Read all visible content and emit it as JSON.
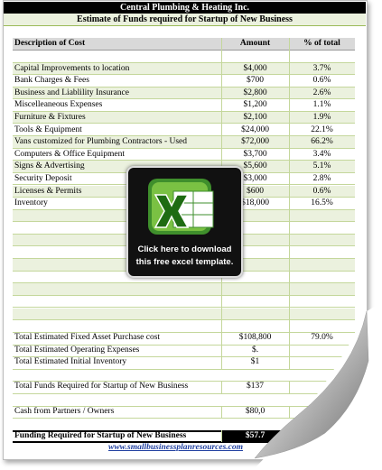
{
  "header": {
    "company": "Central Plumbing & Heating Inc.",
    "title": "Estimate of Funds required for Startup of New Business"
  },
  "table": {
    "columns": [
      "Description of Cost",
      "Amount",
      "% of total"
    ],
    "rows": [
      [
        "Capital Improvements to location",
        "$4,000",
        "3.7%"
      ],
      [
        "Bank Charges & Fees",
        "$700",
        "0.6%"
      ],
      [
        "Business and Liablility Insurance",
        "$2,800",
        "2.6%"
      ],
      [
        "Miscelleaneous Expenses",
        "$1,200",
        "1.1%"
      ],
      [
        "Furniture & Fixtures",
        "$2,100",
        "1.9%"
      ],
      [
        "Tools & Equipment",
        "$24,000",
        "22.1%"
      ],
      [
        "Vans customized for Plumbing Contractors - Used",
        "$72,000",
        "66.2%"
      ],
      [
        "Computers & Office Equipment",
        "$3,700",
        "3.4%"
      ],
      [
        "Signs & Advertising",
        "$5,600",
        "5.1%"
      ],
      [
        "Security Deposit",
        "$3,000",
        "2.8%"
      ],
      [
        "Licenses & Permits",
        "$600",
        "0.6%"
      ],
      [
        "Inventory",
        "$18,000",
        "16.5%"
      ]
    ],
    "totals": [
      [
        "Total Estimated Fixed Asset Purchase cost",
        "$108,800",
        "79.0%"
      ],
      [
        "Total Estimated Operating Expenses",
        "$."
      ],
      [
        "Total Estimated Initial Inventory",
        "$1"
      ],
      [
        "Total Funds Required for Startup of New Business",
        "$137"
      ],
      [
        "Cash from Partners / Owners",
        "$80,0"
      ],
      [
        "Funding Required for Startup of New Business",
        "$57.7"
      ]
    ]
  },
  "overlay": {
    "lines": [
      "Click here to download",
      "this free excel template."
    ]
  },
  "footer": {
    "link": "www.smallbusinessplanresources.com"
  }
}
